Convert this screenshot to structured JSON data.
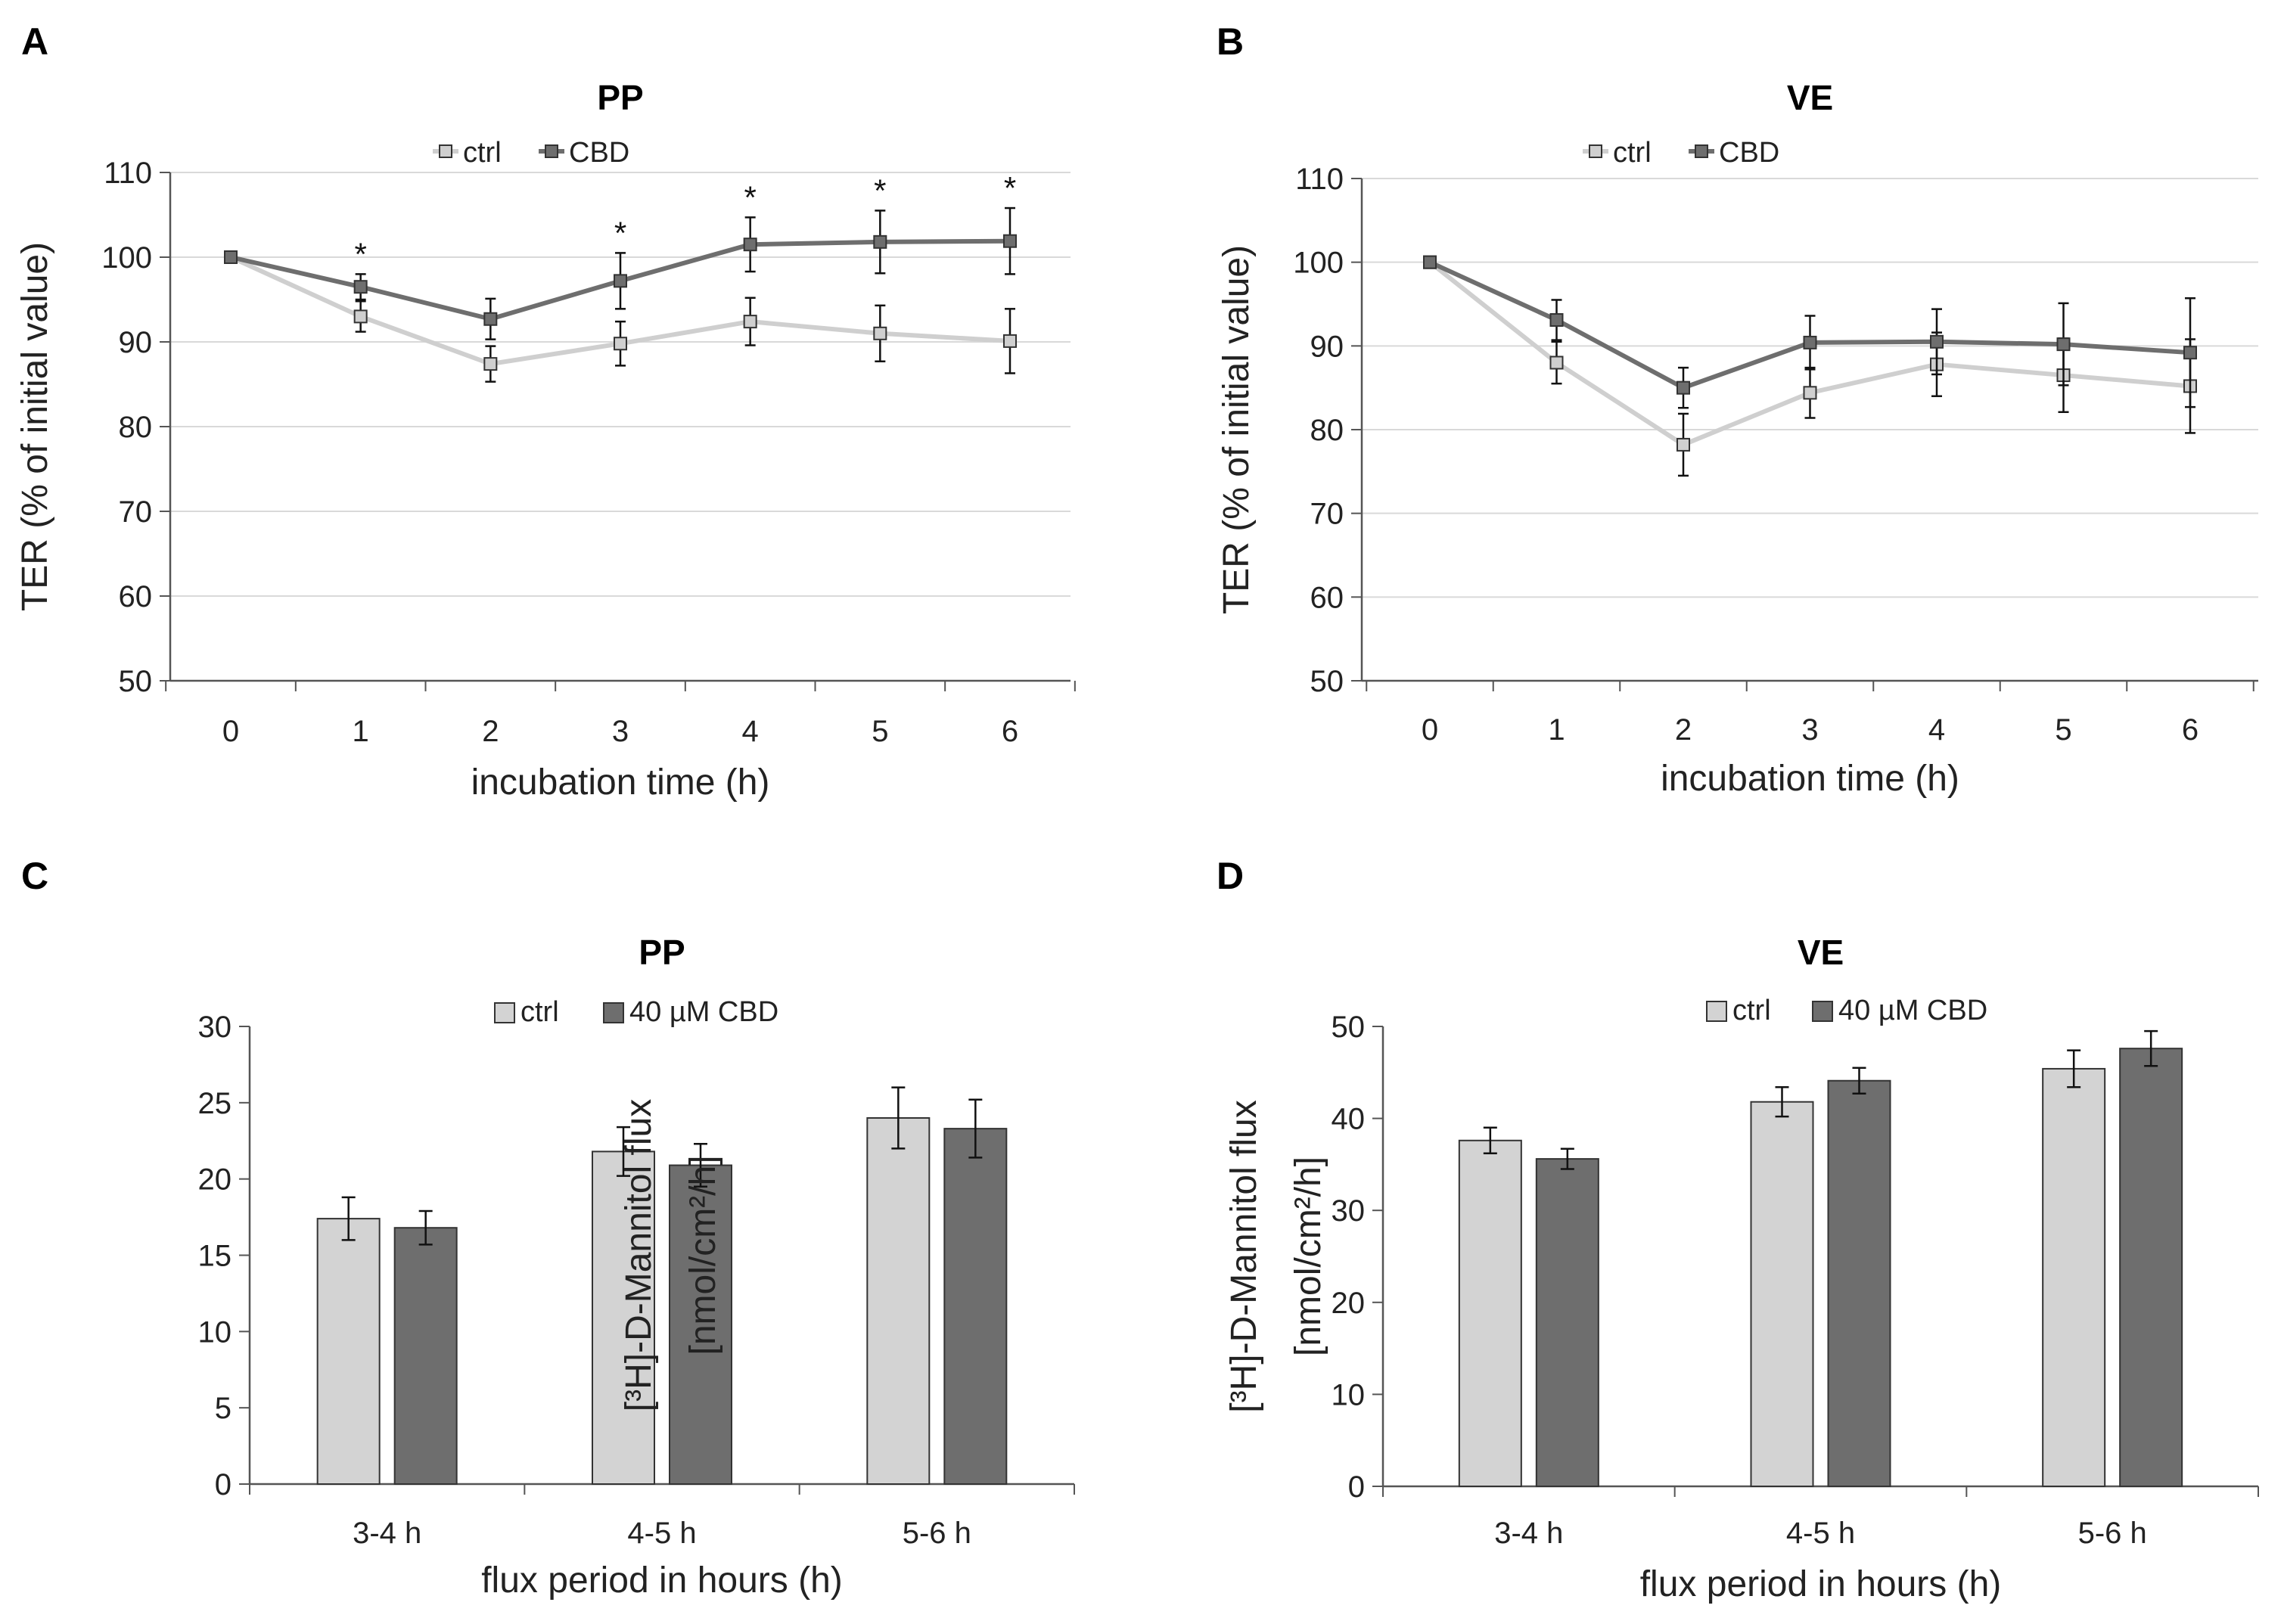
{
  "panels": [
    {
      "letter": "A"
    },
    {
      "letter": "B"
    },
    {
      "letter": "C"
    },
    {
      "letter": "D"
    }
  ],
  "chart_data": [
    {
      "type": "line",
      "title": "PP",
      "xlabel": "incubation time (h)",
      "ylabel": "TER (% of initial value)",
      "x": [
        0,
        1,
        2,
        3,
        4,
        5,
        6
      ],
      "xlim": [
        0,
        6
      ],
      "ylim": [
        50,
        110
      ],
      "yticks": [
        50,
        60,
        70,
        80,
        90,
        100,
        110
      ],
      "legend_position": "top-center",
      "series": [
        {
          "name": "ctrl",
          "color": "#cfcfcf",
          "values": [
            100,
            93,
            87.4,
            89.8,
            92.4,
            91,
            90.1
          ],
          "errors": [
            0,
            1.8,
            2.1,
            2.6,
            2.8,
            3.3,
            3.8
          ]
        },
        {
          "name": "CBD",
          "color": "#6e6e6e",
          "values": [
            100,
            96.5,
            92.7,
            97.2,
            101.5,
            101.8,
            101.9
          ],
          "errors": [
            0,
            1.5,
            2.4,
            3.3,
            3.2,
            3.7,
            3.9
          ]
        }
      ],
      "annotations": [
        {
          "x": 1,
          "text": "*"
        },
        {
          "x": 3,
          "text": "*"
        },
        {
          "x": 4,
          "text": "*"
        },
        {
          "x": 5,
          "text": "*"
        },
        {
          "x": 6,
          "text": "*"
        }
      ]
    },
    {
      "type": "line",
      "title": "VE",
      "xlabel": "incubation time (h)",
      "ylabel": "TER (% of initial value)",
      "x": [
        0,
        1,
        2,
        3,
        4,
        5,
        6
      ],
      "xlim": [
        0,
        6
      ],
      "ylim": [
        50,
        110
      ],
      "yticks": [
        50,
        60,
        70,
        80,
        90,
        100,
        110
      ],
      "legend_position": "top-center",
      "series": [
        {
          "name": "ctrl",
          "color": "#cfcfcf",
          "values": [
            100,
            88,
            78.2,
            84.4,
            87.8,
            86.5,
            85.2
          ],
          "errors": [
            0,
            2.5,
            3.7,
            3,
            3.8,
            4.4,
            5.6
          ]
        },
        {
          "name": "CBD",
          "color": "#6e6e6e",
          "values": [
            100,
            93.1,
            85,
            90.4,
            90.5,
            90.2,
            89.2
          ],
          "errors": [
            0,
            2.4,
            2.4,
            3.2,
            3.9,
            4.9,
            6.5
          ]
        }
      ],
      "annotations": []
    },
    {
      "type": "bar",
      "title": "PP",
      "xlabel": "flux period in hours (h)",
      "ylabel_line1": "[³H]-D-Mannitol flux",
      "ylabel_line2": "[nmol/cm²/h]",
      "categories": [
        "3-4 h",
        "4-5 h",
        "5-6 h"
      ],
      "ylim": [
        0,
        30
      ],
      "yticks": [
        0,
        5,
        10,
        15,
        20,
        25,
        30
      ],
      "legend_position": "top-center",
      "series": [
        {
          "name": "ctrl",
          "color": "#d3d3d3",
          "values": [
            17.4,
            21.8,
            24
          ],
          "errors": [
            1.4,
            1.6,
            2
          ]
        },
        {
          "name": "40 µM CBD",
          "color": "#6e6e6e",
          "values": [
            16.8,
            20.9,
            23.3
          ],
          "errors": [
            1.1,
            1.4,
            1.9
          ]
        }
      ]
    },
    {
      "type": "bar",
      "title": "VE",
      "xlabel": "flux period in hours (h)",
      "ylabel_line1": "[³H]-D-Mannitol flux",
      "ylabel_line2": "[nmol/cm²/h]",
      "categories": [
        "3-4 h",
        "4-5 h",
        "5-6 h"
      ],
      "ylim": [
        0,
        50
      ],
      "yticks": [
        0,
        10,
        20,
        30,
        40,
        50
      ],
      "legend_position": "top-center",
      "series": [
        {
          "name": "ctrl",
          "color": "#d3d3d3",
          "values": [
            37.6,
            41.8,
            45.4
          ],
          "errors": [
            1.4,
            1.6,
            2
          ]
        },
        {
          "name": "40 µM CBD",
          "color": "#6e6e6e",
          "values": [
            35.6,
            44.1,
            47.6
          ],
          "errors": [
            1.1,
            1.4,
            1.9
          ]
        }
      ]
    }
  ]
}
